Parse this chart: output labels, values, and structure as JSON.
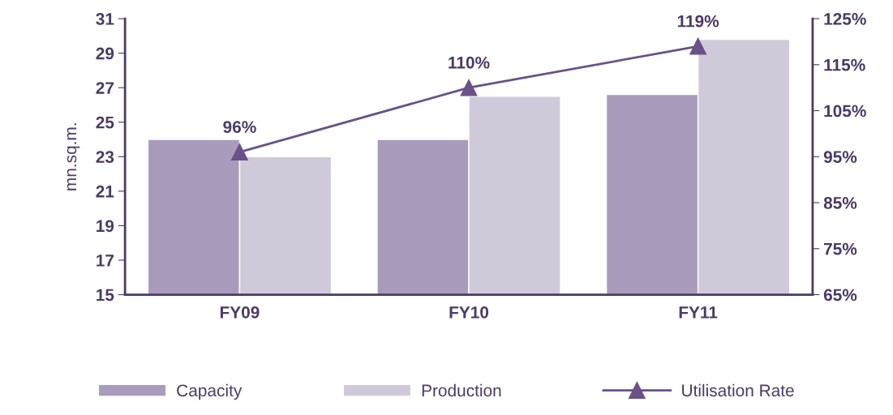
{
  "chart_data": {
    "type": "bar",
    "categories": [
      "FY09",
      "FY10",
      "FY11"
    ],
    "ylabel": "mn.sq.m.",
    "ylim": [
      15,
      31
    ],
    "yticks": [
      15,
      17,
      19,
      21,
      23,
      25,
      27,
      29,
      31
    ],
    "y2lim": [
      65,
      125
    ],
    "y2ticks": [
      {
        "value": 65,
        "label": "65%"
      },
      {
        "value": 75,
        "label": "75%"
      },
      {
        "value": 85,
        "label": "85%"
      },
      {
        "value": 95,
        "label": "95%"
      },
      {
        "value": 105,
        "label": "105%"
      },
      {
        "value": 115,
        "label": "115%"
      },
      {
        "value": 125,
        "label": "125%"
      }
    ],
    "series": [
      {
        "name": "Capacity",
        "color": "#a99bbb",
        "values": [
          24.0,
          24.0,
          26.6
        ]
      },
      {
        "name": "Production",
        "color": "#d0c9da",
        "values": [
          23.0,
          26.5,
          29.8
        ]
      },
      {
        "name": "Utilisation Rate",
        "type": "line",
        "axis": "y2",
        "marker": "triangle",
        "color": "#6a5288",
        "values": [
          96,
          110,
          119
        ],
        "value_labels": [
          "96%",
          "110%",
          "119%"
        ]
      }
    ],
    "grid": false,
    "legend": "bottom"
  }
}
